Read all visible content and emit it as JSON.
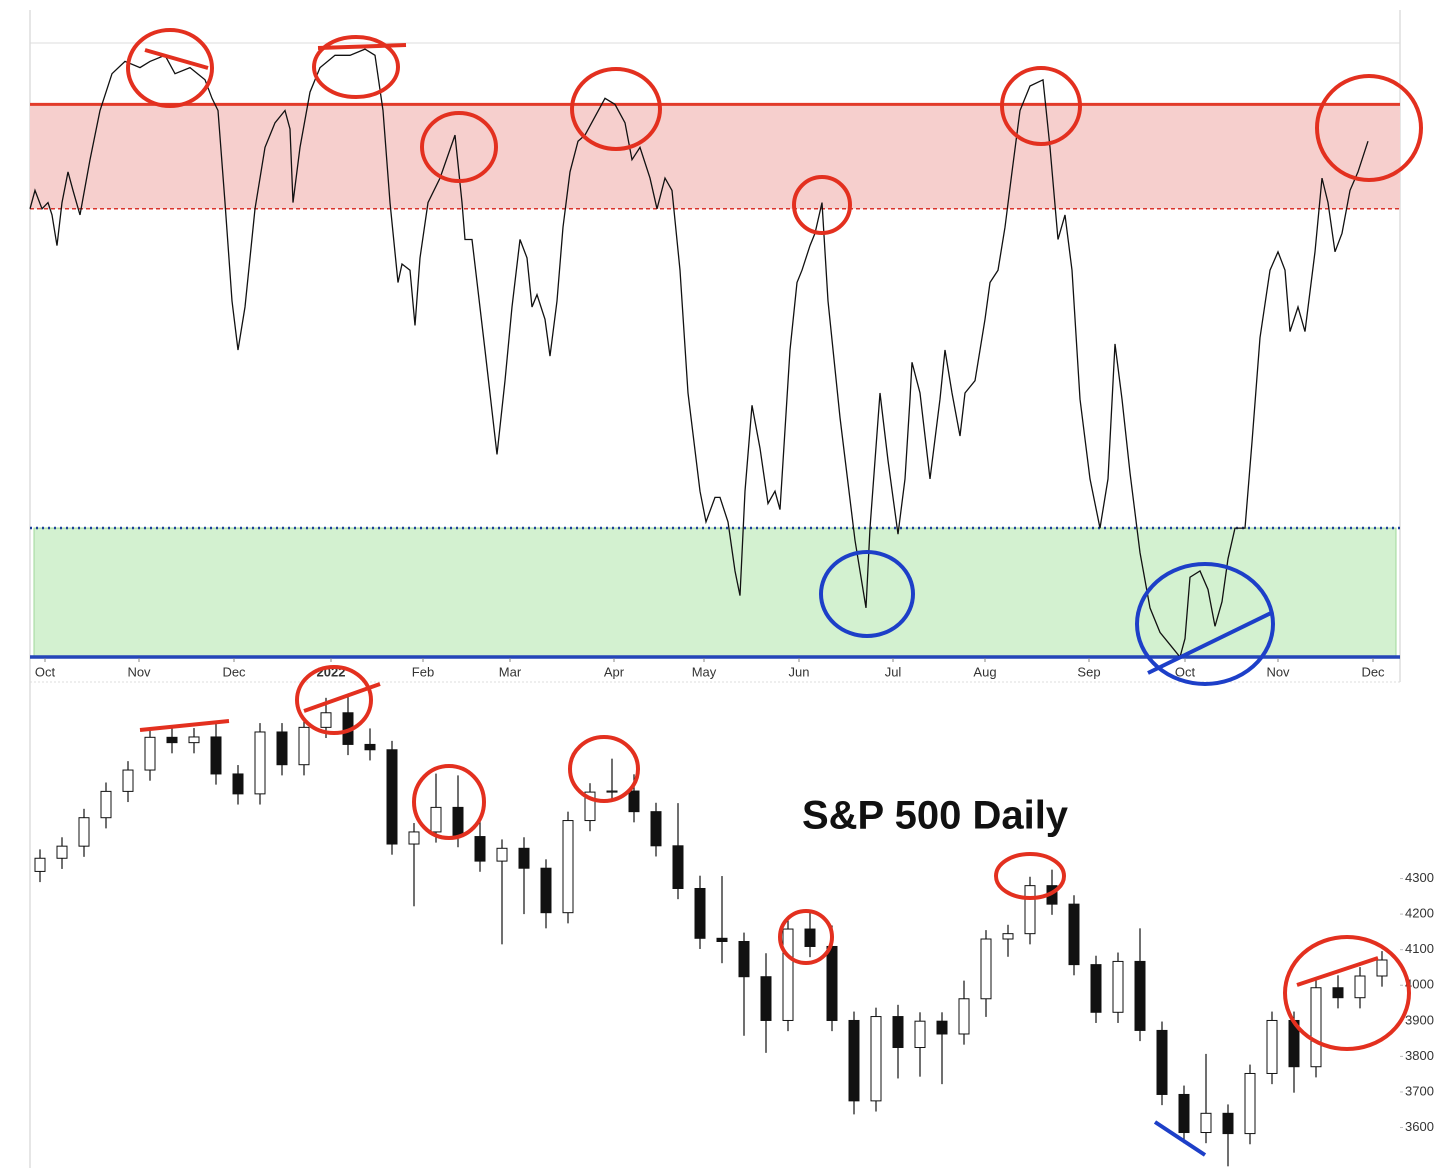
{
  "chart_data": [
    {
      "type": "line",
      "xlim": [
        0,
        1370
      ],
      "ylim": [
        0,
        100
      ],
      "xticks": [
        {
          "value": 15,
          "label": "Oct"
        },
        {
          "value": 109,
          "label": "Nov"
        },
        {
          "value": 204,
          "label": "Dec"
        },
        {
          "value": 301,
          "label": "2022",
          "bold": true
        },
        {
          "value": 393,
          "label": "Feb"
        },
        {
          "value": 480,
          "label": "Mar"
        },
        {
          "value": 584,
          "label": "Apr"
        },
        {
          "value": 674,
          "label": "May"
        },
        {
          "value": 769,
          "label": "Jun"
        },
        {
          "value": 863,
          "label": "Jul"
        },
        {
          "value": 955,
          "label": "Aug"
        },
        {
          "value": 1059,
          "label": "Sep"
        },
        {
          "value": 1155,
          "label": "Oct"
        },
        {
          "value": 1248,
          "label": "Nov"
        },
        {
          "value": 1343,
          "label": "Dec"
        }
      ],
      "bands": [
        {
          "from": 73,
          "to": 90,
          "color": "#f6cfcd",
          "top_color": "#e23b2a",
          "bottom_color": "#d9332b"
        },
        {
          "from": 0,
          "to": 21,
          "color": "#d3f1d0",
          "top_color": "#1f3f9a",
          "bottom_color": "#2446b8"
        }
      ],
      "color": "#111111",
      "x": [
        0,
        5,
        12,
        18,
        22,
        27,
        32,
        38,
        43,
        50,
        60,
        70,
        82,
        95,
        110,
        120,
        135,
        145,
        160,
        175,
        182,
        188,
        195,
        202,
        208,
        215,
        225,
        235,
        245,
        255,
        260,
        263,
        270,
        280,
        290,
        305,
        320,
        335,
        345,
        353,
        360,
        368,
        372,
        380,
        385,
        390,
        398,
        410,
        425,
        432,
        435,
        442,
        455,
        467,
        475,
        482,
        490,
        497,
        502,
        507,
        515,
        520,
        527,
        533,
        540,
        548,
        555,
        565,
        575,
        585,
        595,
        602,
        610,
        620,
        627,
        635,
        642,
        650,
        658,
        670,
        676,
        685,
        690,
        698,
        705,
        710,
        715,
        722,
        730,
        738,
        745,
        750,
        760,
        767,
        772,
        780,
        785,
        792,
        798,
        810,
        825,
        836,
        840,
        850,
        858,
        863,
        868,
        875,
        880,
        882,
        890,
        900,
        910,
        915,
        922,
        930,
        935,
        945,
        955,
        960,
        968,
        975,
        982,
        990,
        1000,
        1013,
        1020,
        1028,
        1035,
        1042,
        1050,
        1060,
        1070,
        1078,
        1085,
        1092,
        1100,
        1110,
        1120,
        1130,
        1140,
        1150,
        1155,
        1160,
        1170,
        1178,
        1185,
        1192,
        1198,
        1205,
        1215,
        1222,
        1230,
        1240,
        1248,
        1255,
        1260,
        1268,
        1275,
        1285,
        1292,
        1298,
        1305,
        1312,
        1320,
        1328,
        1338
      ],
      "values": [
        73,
        76,
        73,
        74,
        72,
        67,
        74,
        79,
        76,
        72,
        81,
        89,
        95,
        97,
        96,
        97,
        98,
        95,
        96,
        94,
        91,
        89,
        74,
        58,
        50,
        57,
        73,
        83,
        87,
        89,
        86,
        74,
        83,
        92,
        96,
        98,
        98,
        99,
        98,
        89,
        74,
        61,
        64,
        63,
        54,
        65,
        74,
        78,
        85,
        74,
        68,
        68,
        50,
        33,
        45,
        57,
        68,
        65,
        57,
        59,
        55,
        49,
        58,
        70,
        79,
        84,
        85,
        88,
        91,
        90,
        87,
        81,
        83,
        78,
        73,
        78,
        76,
        63,
        43,
        27,
        22,
        26,
        26,
        22,
        14,
        10,
        27,
        41,
        34,
        25,
        27,
        24,
        50,
        61,
        63,
        67,
        69,
        74,
        58,
        39,
        19,
        8,
        21,
        43,
        32,
        26,
        20,
        29,
        42,
        48,
        43,
        29,
        42,
        50,
        43,
        36,
        43,
        45,
        55,
        61,
        63,
        70,
        79,
        89,
        93,
        94,
        83,
        68,
        72,
        63,
        42,
        29,
        21,
        29,
        51,
        42,
        30,
        17,
        8,
        4,
        2,
        0,
        3,
        13,
        14,
        11,
        5,
        9,
        16,
        21,
        21,
        35,
        52,
        63,
        66,
        63,
        53,
        57,
        53,
        66,
        78,
        74,
        66,
        69,
        76,
        79,
        84
      ]
    },
    {
      "type": "candlestick",
      "title": "S&P 500 Daily",
      "xlim": [
        0,
        1370
      ],
      "ylim": [
        3520,
        4830
      ],
      "yticks": [
        3600,
        3700,
        3800,
        3900,
        4000,
        4100,
        4200,
        4300
      ],
      "up_color": "#ffffff",
      "down_color": "#111111",
      "x": [
        10,
        32,
        54,
        76,
        98,
        120,
        142,
        164,
        186,
        208,
        230,
        252,
        274,
        296,
        318,
        340,
        362,
        384,
        406,
        428,
        450,
        472,
        494,
        516,
        538,
        560,
        582,
        604,
        626,
        648,
        670,
        692,
        714,
        736,
        758,
        780,
        802,
        824,
        846,
        868,
        890,
        912,
        934,
        956,
        978,
        1000,
        1022,
        1044,
        1066,
        1088,
        1110,
        1132,
        1154,
        1176,
        1198,
        1220,
        1242,
        1264,
        1286,
        1308,
        1330,
        1352
      ],
      "open": [
        4320,
        4357,
        4391,
        4471,
        4545,
        4605,
        4697,
        4682,
        4698,
        4594,
        4538,
        4712,
        4620,
        4725,
        4766,
        4677,
        4662,
        4397,
        4431,
        4500,
        4418,
        4349,
        4385,
        4329,
        4204,
        4463,
        4543,
        4546,
        4488,
        4392,
        4272,
        4132,
        4123,
        4024,
        3901,
        4158,
        4109,
        3901,
        3675,
        3912,
        3825,
        3899,
        3863,
        3962,
        4130,
        4145,
        4280,
        4228,
        4058,
        3924,
        4067,
        3873,
        3693,
        3586,
        3640,
        3583,
        3752,
        3901,
        3771,
        3993,
        3965,
        4026
      ],
      "high": [
        4382,
        4416,
        4496,
        4570,
        4630,
        4722,
        4722,
        4723,
        4743,
        4619,
        4737,
        4737,
        4750,
        4808,
        4818,
        4722,
        4687,
        4456,
        4595,
        4590,
        4475,
        4410,
        4416,
        4354,
        4488,
        4568,
        4637,
        4593,
        4513,
        4512,
        4308,
        4307,
        4148,
        4090,
        4183,
        4205,
        4168,
        3926,
        3937,
        3945,
        3924,
        3924,
        4013,
        4155,
        4170,
        4305,
        4325,
        4253,
        4083,
        4092,
        4160,
        3898,
        3718,
        3807,
        3665,
        3777,
        3926,
        3926,
        4018,
        4028,
        4051,
        4096
      ],
      "low": [
        4290,
        4327,
        4361,
        4441,
        4515,
        4575,
        4652,
        4652,
        4564,
        4508,
        4508,
        4590,
        4590,
        4695,
        4647,
        4632,
        4367,
        4222,
        4401,
        4388,
        4319,
        4115,
        4200,
        4160,
        4174,
        4433,
        4516,
        4458,
        4362,
        4242,
        4102,
        4062,
        3858,
        3810,
        3871,
        4079,
        3871,
        3637,
        3645,
        3738,
        3743,
        3722,
        3833,
        3911,
        4080,
        4115,
        4198,
        4028,
        3894,
        3894,
        3843,
        3663,
        3556,
        3556,
        3491,
        3553,
        3722,
        3698,
        3741,
        3935,
        3935,
        3996
      ],
      "close": [
        4357,
        4391,
        4471,
        4545,
        4605,
        4697,
        4682,
        4698,
        4594,
        4538,
        4712,
        4620,
        4725,
        4766,
        4677,
        4662,
        4397,
        4431,
        4500,
        4418,
        4349,
        4385,
        4329,
        4204,
        4463,
        4543,
        4546,
        4488,
        4392,
        4272,
        4132,
        4123,
        4024,
        3901,
        4158,
        4109,
        3901,
        3675,
        3912,
        3825,
        3899,
        3863,
        3962,
        4130,
        4145,
        4280,
        4228,
        4058,
        3924,
        4067,
        3873,
        3693,
        3586,
        3640,
        3583,
        3752,
        3901,
        3771,
        3993,
        3965,
        4026,
        4071
      ]
    }
  ]
}
